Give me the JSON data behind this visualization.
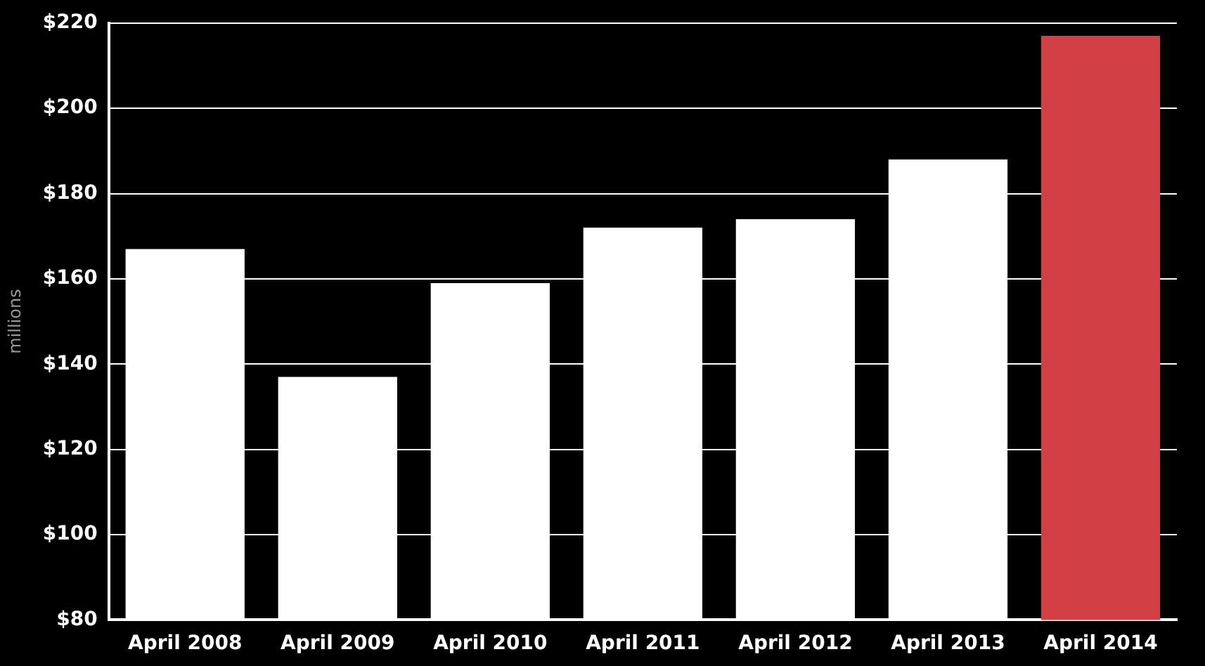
{
  "chart_data": {
    "type": "bar",
    "ylabel": "millions",
    "categories": [
      "April 2008",
      "April 2009",
      "April 2010",
      "April 2011",
      "April 2012",
      "April 2013",
      "April 2014"
    ],
    "values": [
      167,
      137,
      159,
      172,
      174,
      188,
      217
    ],
    "colors": [
      "#ffffff",
      "#ffffff",
      "#ffffff",
      "#ffffff",
      "#ffffff",
      "#ffffff",
      "#d23f45"
    ],
    "ylim": [
      80,
      220
    ],
    "yticks": [
      {
        "value": 80,
        "label": "$80"
      },
      {
        "value": 100,
        "label": "$100"
      },
      {
        "value": 120,
        "label": "$120"
      },
      {
        "value": 140,
        "label": "$140"
      },
      {
        "value": 160,
        "label": "$160"
      },
      {
        "value": 180,
        "label": "$180"
      },
      {
        "value": 200,
        "label": "$200"
      },
      {
        "value": 220,
        "label": "$220"
      }
    ],
    "grid": "y",
    "legend": false
  }
}
